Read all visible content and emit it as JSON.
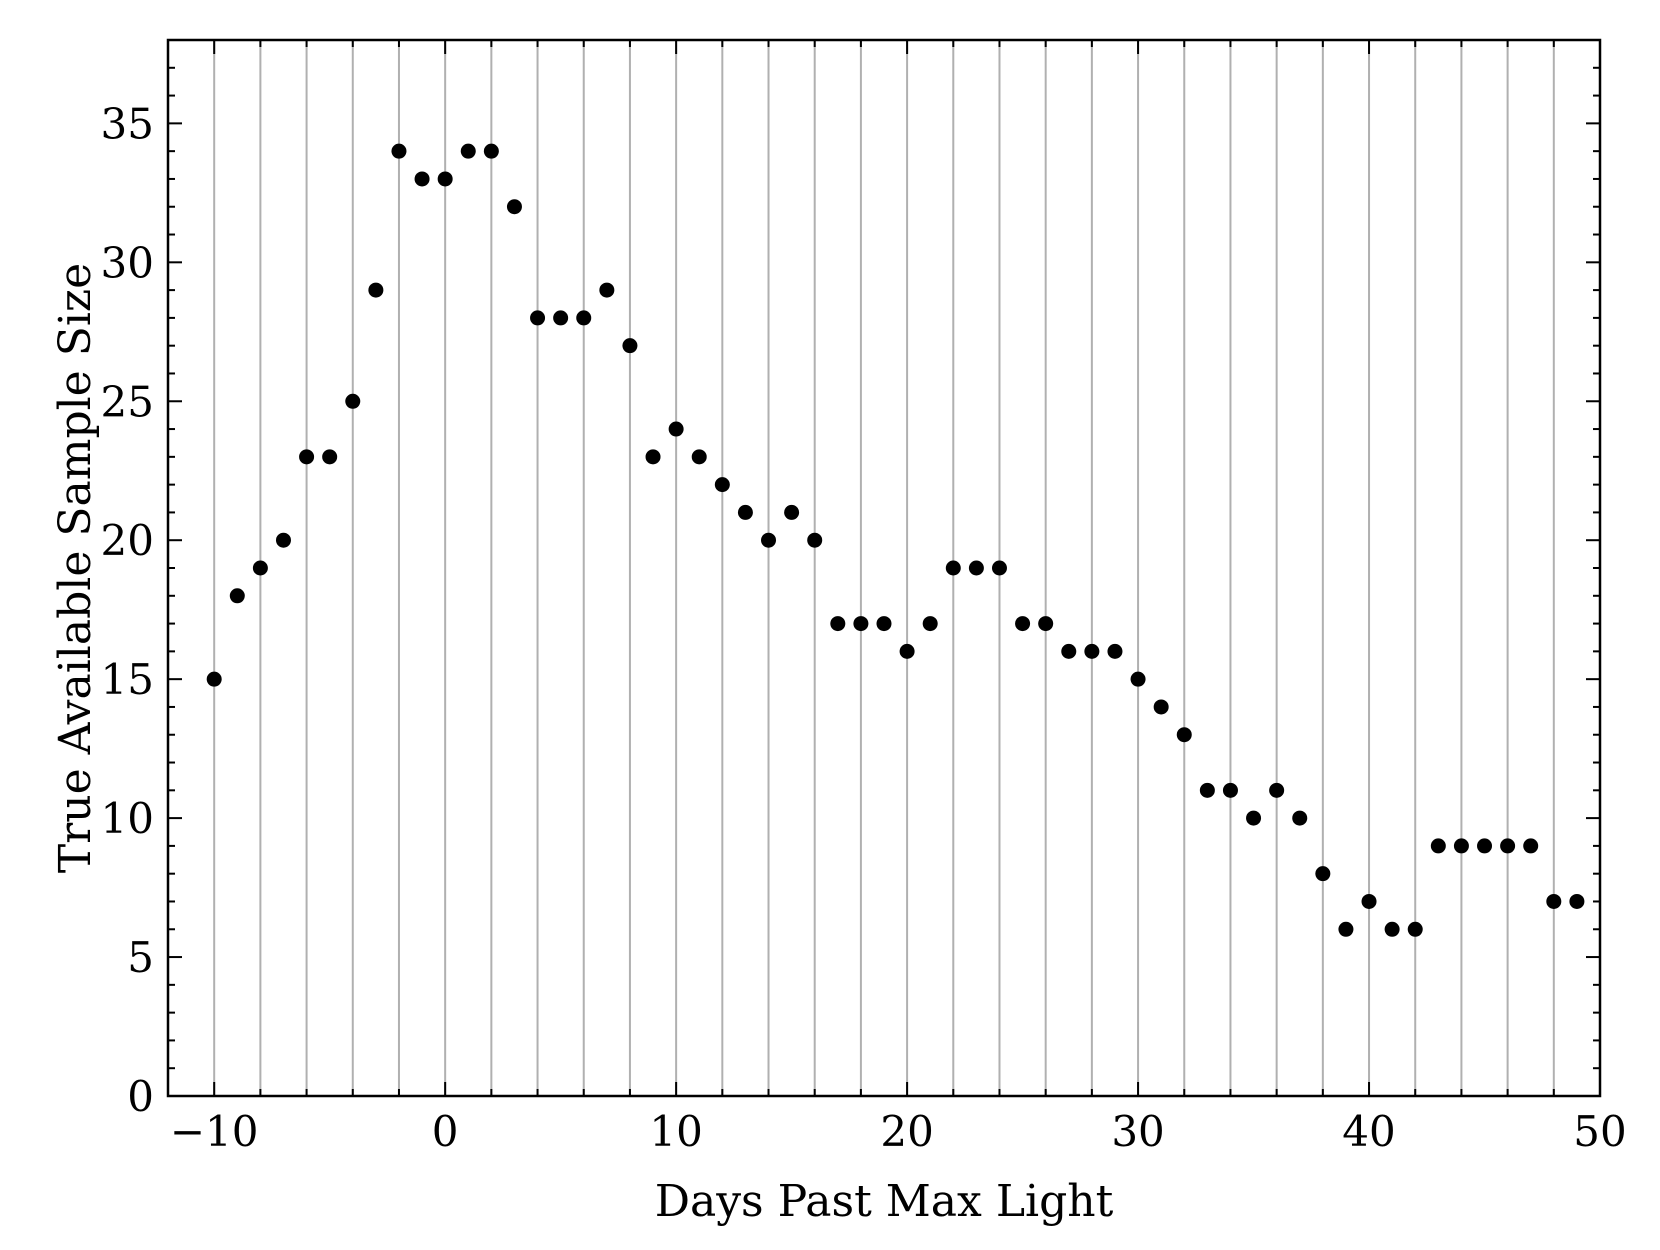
{
  "chart_data": {
    "type": "scatter",
    "title": "",
    "xlabel": "Days Past Max Light",
    "ylabel": "True Available Sample Size",
    "xlim": [
      -12,
      50
    ],
    "ylim": [
      0,
      38
    ],
    "xticks": [
      -10,
      0,
      10,
      20,
      30,
      40,
      50
    ],
    "xtick_labels": [
      "−10",
      "0",
      "10",
      "20",
      "30",
      "40",
      "50"
    ],
    "yticks": [
      0,
      5,
      10,
      15,
      20,
      25,
      30,
      35
    ],
    "ytick_labels": [
      "0",
      "5",
      "10",
      "15",
      "20",
      "25",
      "30",
      "35"
    ],
    "vertical_gridlines_x": [
      -10,
      -8,
      -6,
      -4,
      -2,
      0,
      2,
      4,
      6,
      8,
      10,
      12,
      14,
      16,
      18,
      20,
      22,
      24,
      26,
      28,
      30,
      32,
      34,
      36,
      38,
      40,
      42,
      44,
      46,
      48
    ],
    "grid": "vertical lines every 2 days",
    "legend": "none",
    "marker_color": "#000000",
    "gridline_color": "#b0b0b0",
    "series": [
      {
        "x": [
          -10,
          -9,
          -8,
          -7,
          -6,
          -5,
          -4,
          -3,
          -2,
          -1,
          0,
          1,
          2,
          3,
          4,
          5,
          6,
          7,
          8,
          9,
          10,
          11,
          12,
          13,
          14,
          15,
          16,
          17,
          18,
          19,
          20,
          21,
          22,
          23,
          24,
          25,
          26,
          27,
          28,
          29,
          30,
          31,
          32,
          33,
          34,
          35,
          36,
          37,
          38,
          39,
          40,
          41,
          42,
          43,
          44,
          45,
          46,
          47,
          48,
          49
        ],
        "y": [
          15,
          18,
          19,
          20,
          23,
          23,
          25,
          29,
          34,
          33,
          33,
          34,
          34,
          32,
          28,
          28,
          28,
          29,
          27,
          23,
          24,
          23,
          22,
          21,
          20,
          21,
          20,
          17,
          17,
          17,
          16,
          17,
          19,
          19,
          19,
          17,
          17,
          16,
          16,
          16,
          15,
          14,
          13,
          11,
          11,
          10,
          11,
          10,
          8,
          6,
          7,
          6,
          6,
          9,
          9,
          9,
          9,
          9,
          7,
          7
        ]
      }
    ]
  }
}
